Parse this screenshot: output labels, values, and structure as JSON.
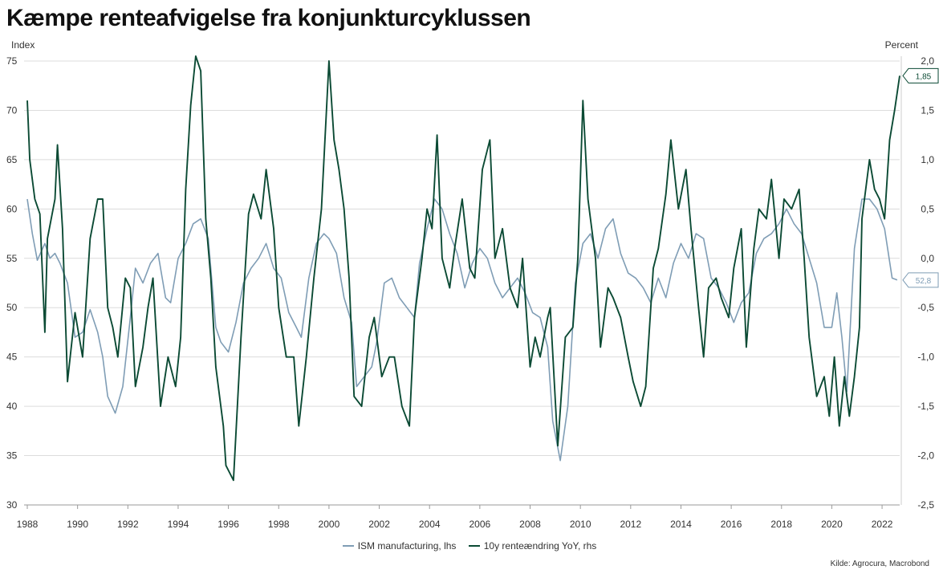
{
  "title": "Kæmpe renteafvigelse fra konjunkturcyklussen",
  "source": "Kilde: Agrocura, Macrobond",
  "chart_data": {
    "type": "line",
    "left_axis_label": "Index",
    "right_axis_label": "Percent",
    "left_ylim": [
      30,
      75
    ],
    "right_ylim": [
      -2.5,
      2.0
    ],
    "left_ticks": [
      "30",
      "35",
      "40",
      "45",
      "50",
      "55",
      "60",
      "65",
      "70",
      "75"
    ],
    "right_ticks": [
      "-2,5",
      "-2,0",
      "-1,5",
      "-1,0",
      "-0,5",
      "0,0",
      "0,5",
      "1,0",
      "1,5",
      "2,0"
    ],
    "x_ticks": [
      "1988",
      "1990",
      "1992",
      "1994",
      "1996",
      "1998",
      "2000",
      "2002",
      "2004",
      "2006",
      "2008",
      "2010",
      "2012",
      "2014",
      "2016",
      "2018",
      "2020",
      "2022"
    ],
    "xlim": [
      1988.0,
      2022.7
    ],
    "grid": true,
    "legend_position": "bottom-center",
    "series": [
      {
        "name": "ISM manufacturing, lhs",
        "axis": "left",
        "color": "#7f9db5",
        "end_label": "52,8",
        "x": [
          1988.0,
          1988.2,
          1988.4,
          1988.7,
          1988.9,
          1989.1,
          1989.3,
          1989.6,
          1989.9,
          1990.2,
          1990.5,
          1990.8,
          1991.0,
          1991.2,
          1991.5,
          1991.8,
          1992.1,
          1992.3,
          1992.6,
          1992.9,
          1993.2,
          1993.5,
          1993.7,
          1994.0,
          1994.3,
          1994.6,
          1994.9,
          1995.2,
          1995.5,
          1995.7,
          1996.0,
          1996.3,
          1996.6,
          1996.9,
          1997.2,
          1997.5,
          1997.8,
          1998.1,
          1998.4,
          1998.7,
          1998.9,
          1999.2,
          1999.5,
          1999.8,
          2000.0,
          2000.3,
          2000.6,
          2000.9,
          2001.1,
          2001.4,
          2001.7,
          2001.9,
          2002.2,
          2002.5,
          2002.8,
          2003.1,
          2003.4,
          2003.6,
          2003.9,
          2004.2,
          2004.5,
          2004.8,
          2005.1,
          2005.4,
          2005.7,
          2006.0,
          2006.3,
          2006.6,
          2006.9,
          2007.2,
          2007.5,
          2007.8,
          2008.1,
          2008.4,
          2008.7,
          2008.9,
          2009.2,
          2009.5,
          2009.8,
          2010.1,
          2010.4,
          2010.7,
          2011.0,
          2011.3,
          2011.6,
          2011.9,
          2012.2,
          2012.5,
          2012.8,
          2013.1,
          2013.4,
          2013.7,
          2014.0,
          2014.3,
          2014.6,
          2014.9,
          2015.2,
          2015.5,
          2015.8,
          2016.1,
          2016.4,
          2016.7,
          2017.0,
          2017.3,
          2017.6,
          2017.9,
          2018.2,
          2018.5,
          2018.8,
          2019.1,
          2019.4,
          2019.7,
          2020.0,
          2020.2,
          2020.4,
          2020.6,
          2020.9,
          2021.2,
          2021.5,
          2021.8,
          2022.1,
          2022.4,
          2022.6
        ],
        "values": [
          61.0,
          57.5,
          54.8,
          56.5,
          55.0,
          55.5,
          54.5,
          52.5,
          47.0,
          47.5,
          49.8,
          47.5,
          45.0,
          41.0,
          39.3,
          42.0,
          49.0,
          54.0,
          52.5,
          54.5,
          55.5,
          51.0,
          50.5,
          55.0,
          56.5,
          58.5,
          59.0,
          57.0,
          48.0,
          46.5,
          45.5,
          48.5,
          52.5,
          54.0,
          55.0,
          56.5,
          54.0,
          53.0,
          49.5,
          48.0,
          47.0,
          53.0,
          56.5,
          57.5,
          57.0,
          55.5,
          51.0,
          48.5,
          42.0,
          43.0,
          44.0,
          46.5,
          52.5,
          53.0,
          51.0,
          50.0,
          49.0,
          54.5,
          58.0,
          61.0,
          60.0,
          57.5,
          55.5,
          52.0,
          54.5,
          56.0,
          55.0,
          52.5,
          51.0,
          52.0,
          53.0,
          51.5,
          49.5,
          49.0,
          46.0,
          38.5,
          34.5,
          40.0,
          52.5,
          56.5,
          57.5,
          55.0,
          58.0,
          59.0,
          55.5,
          53.5,
          53.0,
          52.0,
          50.5,
          53.0,
          51.0,
          54.5,
          56.5,
          55.0,
          57.5,
          57.0,
          53.0,
          52.0,
          50.5,
          48.5,
          50.5,
          51.5,
          55.5,
          57.0,
          57.5,
          58.5,
          60.0,
          58.5,
          57.5,
          55.0,
          52.5,
          48.0,
          48.0,
          51.5,
          47.0,
          41.5,
          56.0,
          61.0,
          61.0,
          60.0,
          58.0,
          53.0,
          52.8
        ]
      },
      {
        "name": "10y renteændring YoY, rhs",
        "axis": "right",
        "color": "#0b4a34",
        "end_label": "1,85",
        "x": [
          1988.0,
          1988.1,
          1988.3,
          1988.5,
          1988.7,
          1988.8,
          1989.1,
          1989.2,
          1989.4,
          1989.6,
          1989.9,
          1990.2,
          1990.5,
          1990.8,
          1991.0,
          1991.2,
          1991.4,
          1991.6,
          1991.9,
          1992.1,
          1992.3,
          1992.6,
          1992.8,
          1993.0,
          1993.3,
          1993.6,
          1993.9,
          1994.1,
          1994.3,
          1994.5,
          1994.7,
          1994.9,
          1995.1,
          1995.3,
          1995.5,
          1995.8,
          1995.9,
          1996.2,
          1996.5,
          1996.8,
          1997.0,
          1997.3,
          1997.5,
          1997.8,
          1998.0,
          1998.3,
          1998.6,
          1998.8,
          1999.1,
          1999.4,
          1999.7,
          2000.0,
          2000.2,
          2000.4,
          2000.6,
          2000.8,
          2001.0,
          2001.3,
          2001.6,
          2001.8,
          2002.1,
          2002.4,
          2002.6,
          2002.9,
          2003.2,
          2003.4,
          2003.7,
          2003.9,
          2004.1,
          2004.3,
          2004.5,
          2004.8,
          2005.0,
          2005.3,
          2005.6,
          2005.8,
          2006.1,
          2006.4,
          2006.6,
          2006.9,
          2007.2,
          2007.5,
          2007.7,
          2008.0,
          2008.2,
          2008.4,
          2008.7,
          2008.8,
          2009.1,
          2009.4,
          2009.7,
          2009.9,
          2010.1,
          2010.3,
          2010.6,
          2010.8,
          2011.1,
          2011.3,
          2011.6,
          2011.9,
          2012.1,
          2012.4,
          2012.6,
          2012.9,
          2013.1,
          2013.4,
          2013.6,
          2013.9,
          2014.2,
          2014.4,
          2014.7,
          2014.9,
          2015.1,
          2015.4,
          2015.6,
          2015.9,
          2016.1,
          2016.4,
          2016.6,
          2016.9,
          2017.1,
          2017.4,
          2017.6,
          2017.9,
          2018.1,
          2018.4,
          2018.7,
          2018.9,
          2019.1,
          2019.4,
          2019.7,
          2019.9,
          2020.1,
          2020.3,
          2020.5,
          2020.7,
          2020.9,
          2021.1,
          2021.2,
          2021.5,
          2021.7,
          2021.9,
          2022.1,
          2022.3,
          2022.5,
          2022.7
        ],
        "values": [
          1.6,
          1.0,
          0.6,
          0.45,
          -0.75,
          0.2,
          0.6,
          1.15,
          0.3,
          -1.25,
          -0.55,
          -1.0,
          0.2,
          0.6,
          0.6,
          -0.5,
          -0.7,
          -1.0,
          -0.2,
          -0.3,
          -1.3,
          -0.9,
          -0.5,
          -0.2,
          -1.5,
          -1.0,
          -1.3,
          -0.8,
          0.7,
          1.55,
          2.05,
          1.9,
          0.4,
          -0.2,
          -1.1,
          -1.7,
          -2.1,
          -2.25,
          -0.8,
          0.45,
          0.65,
          0.4,
          0.9,
          0.3,
          -0.5,
          -1.0,
          -1.0,
          -1.7,
          -1.0,
          -0.2,
          0.5,
          2.0,
          1.2,
          0.9,
          0.5,
          -0.2,
          -1.4,
          -1.5,
          -0.8,
          -0.6,
          -1.2,
          -1.0,
          -1.0,
          -1.5,
          -1.7,
          -0.6,
          0.0,
          0.5,
          0.3,
          1.25,
          0.0,
          -0.3,
          0.1,
          0.6,
          -0.1,
          -0.2,
          0.9,
          1.2,
          0.0,
          0.3,
          -0.3,
          -0.5,
          0.0,
          -1.1,
          -0.8,
          -1.0,
          -0.6,
          -0.5,
          -1.9,
          -0.8,
          -0.7,
          0.0,
          1.6,
          0.6,
          0.0,
          -0.9,
          -0.3,
          -0.4,
          -0.6,
          -1.0,
          -1.25,
          -1.5,
          -1.3,
          -0.1,
          0.1,
          0.65,
          1.2,
          0.5,
          0.9,
          0.3,
          -0.5,
          -1.0,
          -0.3,
          -0.2,
          -0.4,
          -0.6,
          -0.1,
          0.3,
          -0.9,
          0.1,
          0.5,
          0.4,
          0.8,
          0.0,
          0.6,
          0.5,
          0.7,
          0.0,
          -0.8,
          -1.4,
          -1.2,
          -1.6,
          -1.0,
          -1.7,
          -1.2,
          -1.6,
          -1.2,
          -0.7,
          0.4,
          1.0,
          0.7,
          0.6,
          0.4,
          1.2,
          1.5,
          1.85
        ]
      }
    ]
  }
}
